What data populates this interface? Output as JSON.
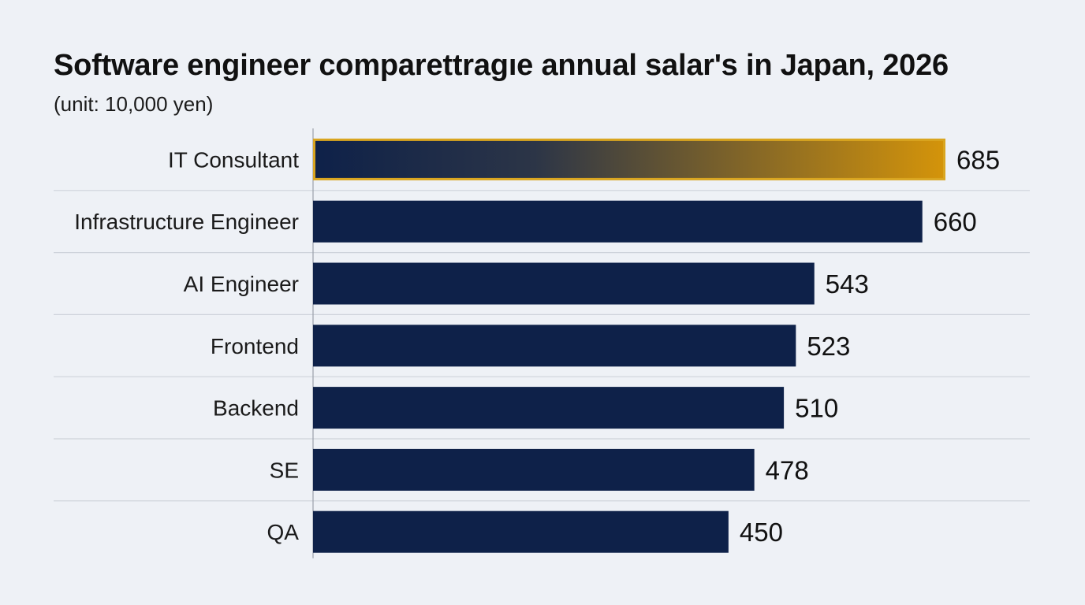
{
  "chart_data": {
    "type": "bar",
    "orientation": "horizontal",
    "title": "Software engineer comparettragıe annual salar's in Japan, 2026",
    "subtitle": "(unit: 10,000 yen)",
    "categories": [
      "IT Consultant",
      "Infrastructure Engineer",
      "AI Engineer",
      "Frontend",
      "Backend",
      "SE",
      "QA"
    ],
    "values": [
      685,
      660,
      543,
      523,
      510,
      478,
      450
    ],
    "data_labels": [
      "685",
      "660",
      "543",
      "523",
      "510",
      "478",
      "450"
    ],
    "xlim": [
      0,
      685
    ],
    "grid": "horizontal separators between rows",
    "legend": "none",
    "highlight_index": 0,
    "colors": {
      "bar": "#0e2149",
      "highlight_gradient_start": "#0e2149",
      "highlight_gradient_end": "#d4940a",
      "highlight_border": "#d9a520",
      "separator": "#cdd2da",
      "axis": "#9aa0aa",
      "label_text": "#1a1a1a",
      "background": "#eef1f6"
    }
  }
}
